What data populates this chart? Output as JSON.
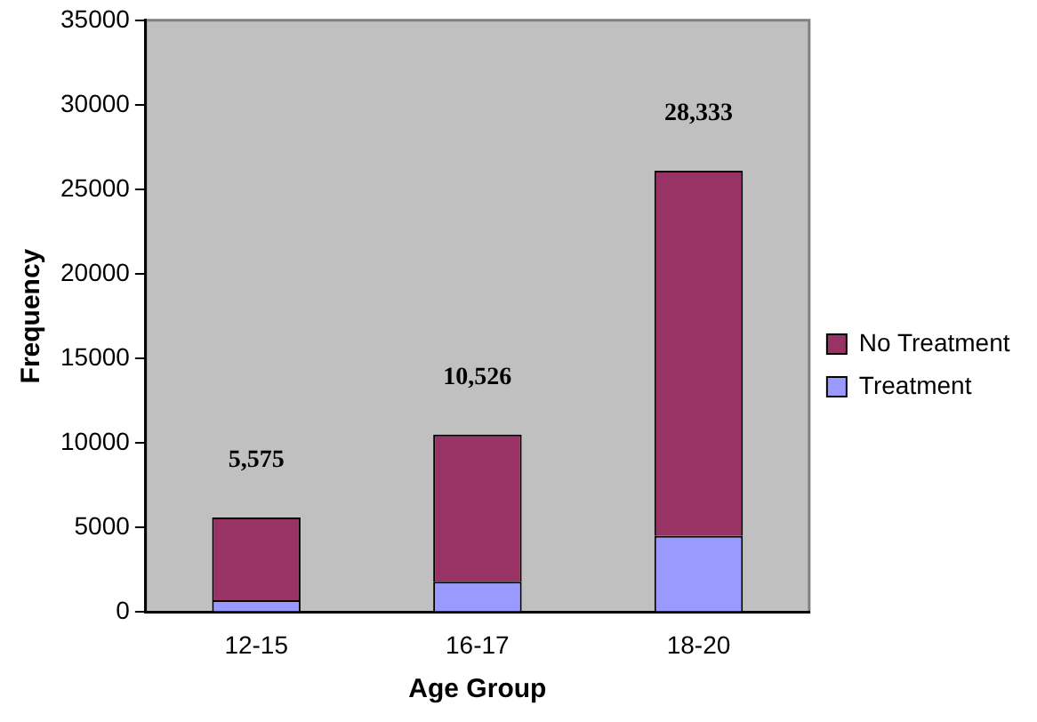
{
  "chart_data": {
    "type": "bar",
    "xlabel": "Age Group",
    "ylabel": "Frequency",
    "categories": [
      "12-15",
      "16-17",
      "18-20"
    ],
    "stacked": true,
    "series": [
      {
        "name": "Treatment",
        "color": "#9999ff",
        "values": [
          700,
          1800,
          4500
        ]
      },
      {
        "name": "No Treatment",
        "color": "#993366",
        "values": [
          4900,
          8700,
          21600
        ]
      }
    ],
    "annotations": [
      "5,575",
      "10,526",
      "28,333"
    ],
    "ylim": [
      0,
      35000
    ],
    "yticks": [
      0,
      5000,
      10000,
      15000,
      20000,
      25000,
      30000,
      35000
    ],
    "grid": false,
    "legend": "right"
  }
}
